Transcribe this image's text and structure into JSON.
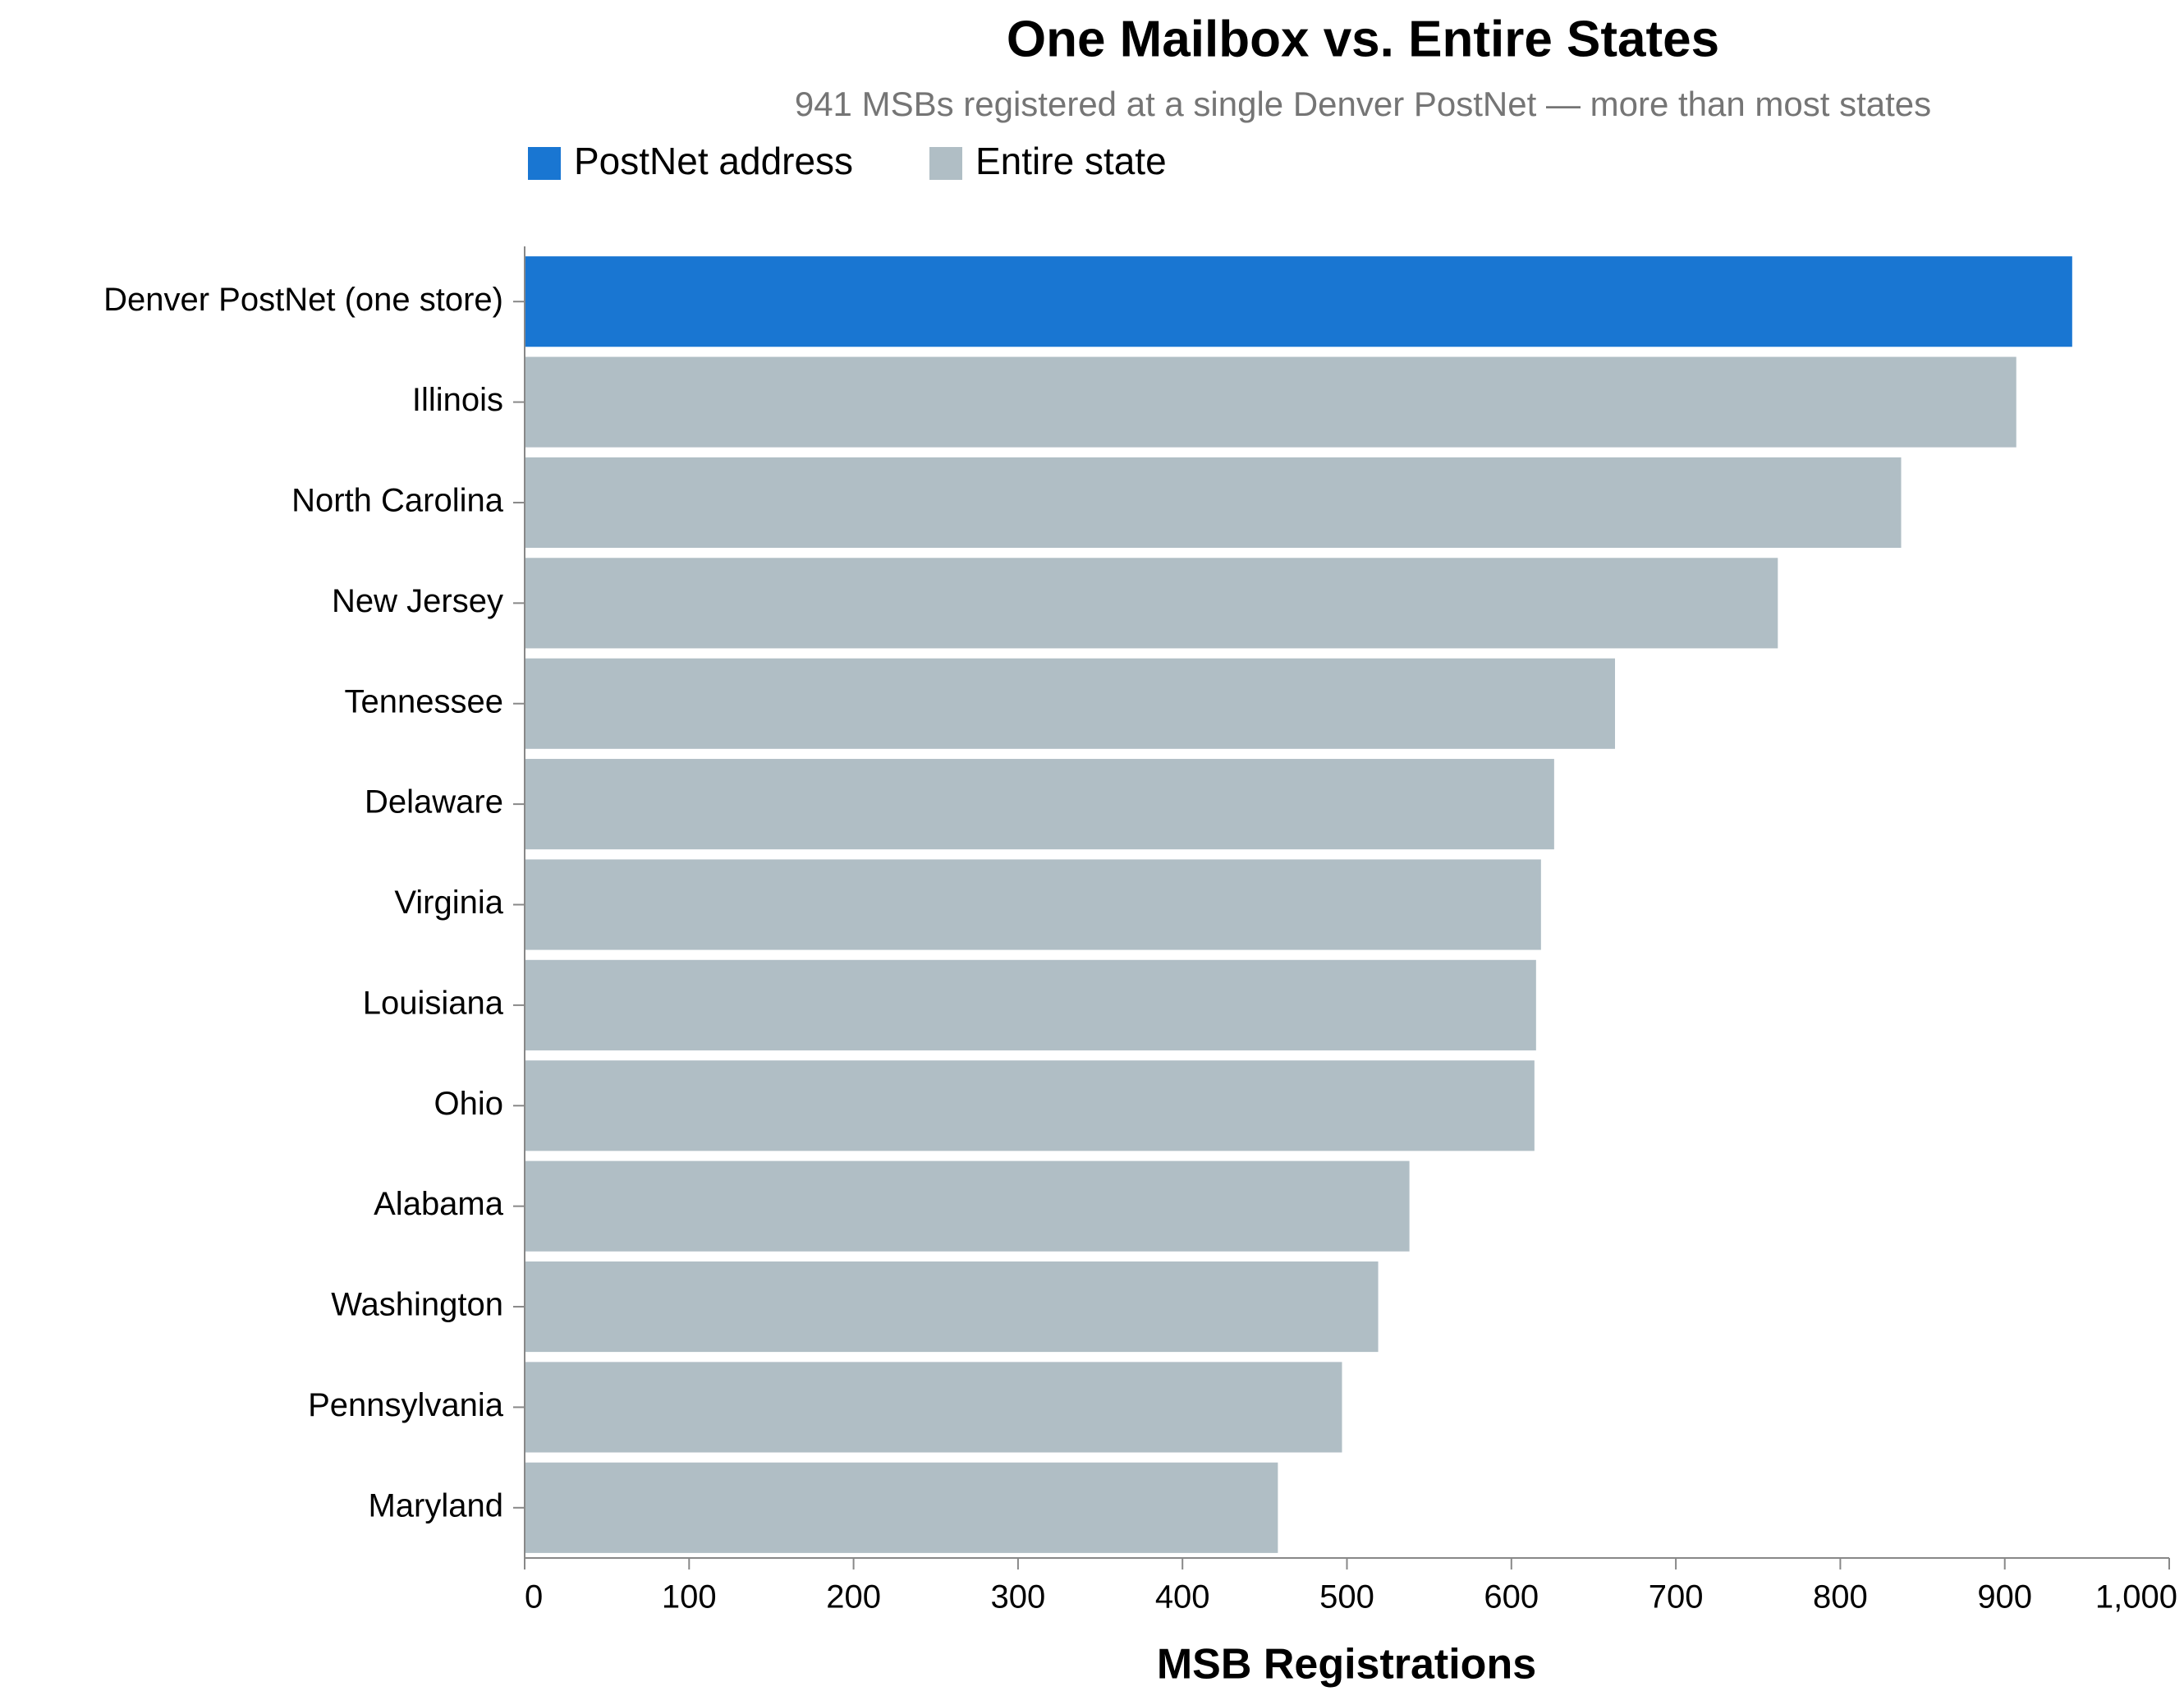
{
  "chart_data": {
    "type": "bar",
    "orientation": "horizontal",
    "title": "One Mailbox vs. Entire States",
    "subtitle": "941 MSBs registered at a single Denver PostNet — more than most states",
    "x_label": "MSB Registrations",
    "categories": [
      "Denver PostNet (one store)",
      "Illinois",
      "North Carolina",
      "New Jersey",
      "Tennessee",
      "Delaware",
      "Virginia",
      "Louisiana",
      "Ohio",
      "Alabama",
      "Washington",
      "Pennsylvania",
      "Maryland"
    ],
    "series": [
      {
        "name": "PostNet address",
        "color": "#1976d2",
        "values": [
          941,
          null,
          null,
          null,
          null,
          null,
          null,
          null,
          null,
          null,
          null,
          null,
          null
        ]
      },
      {
        "name": "Entire state",
        "color": "#b0bec5",
        "values": [
          null,
          907,
          837,
          762,
          663,
          626,
          618,
          615,
          614,
          538,
          519,
          497,
          458
        ]
      }
    ],
    "xlim": [
      0,
      1000
    ],
    "xticks": [
      0,
      100,
      200,
      300,
      400,
      500,
      600,
      700,
      800,
      900,
      {
        "value": 1000,
        "label": "1,000"
      }
    ],
    "grid": false
  }
}
